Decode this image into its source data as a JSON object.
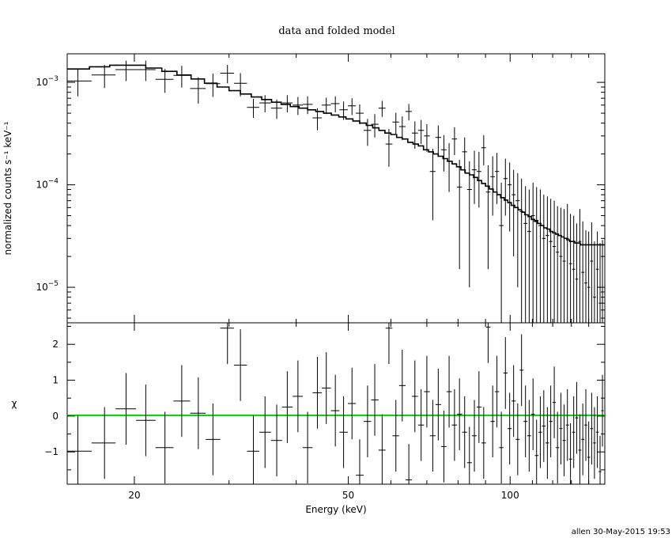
{
  "chart_data": {
    "title": "data and folded model",
    "footer": "allen 30-May-2015 19:53",
    "x_axis": {
      "label": "Energy (keV)",
      "scale": "log",
      "range": [
        15.0,
        150.0
      ],
      "ticks": [
        {
          "value": 20,
          "label": "20"
        },
        {
          "value": 50,
          "label": "50"
        },
        {
          "value": 100,
          "label": "100"
        }
      ]
    },
    "panels": [
      {
        "name": "spectrum",
        "type": "scatter",
        "ylabel": "normalized counts s⁻¹ keV⁻¹",
        "y_scale": "log",
        "y_range": [
          4.5e-06,
          0.0019
        ],
        "y_ticks": [
          {
            "value": 0.001,
            "base": "10",
            "exp": "−3"
          },
          {
            "value": 0.0001,
            "base": "10",
            "exp": "−4"
          },
          {
            "value": 1e-05,
            "base": "10",
            "exp": "−5"
          }
        ],
        "data": {
          "x": [
            15.7,
            17.6,
            19.3,
            21.0,
            22.8,
            24.5,
            26.3,
            28.0,
            29.8,
            31.5,
            33.3,
            35.0,
            36.8,
            38.5,
            40.3,
            42.0,
            43.8,
            45.5,
            47.3,
            49.0,
            50.8,
            52.5,
            54.3,
            56.0,
            57.8,
            59.5,
            61.3,
            63.0,
            64.8,
            66.5,
            68.3,
            70.0,
            71.8,
            73.5,
            75.3,
            77.0,
            78.8,
            80.5,
            82.3,
            84.0,
            85.8,
            87.5,
            89.3,
            91.0,
            92.8,
            94.5,
            96.3,
            98.0,
            99.8,
            101.5,
            103.3,
            105.0,
            106.8,
            108.5,
            110.3,
            112.0,
            113.8,
            115.5,
            117.3,
            119.0,
            120.8,
            122.5,
            124.3,
            126.0,
            127.8,
            129.5,
            131.3,
            133.0,
            134.8,
            136.5,
            138.3,
            140.0,
            141.8,
            143.5,
            145.3,
            147.0,
            148.5
          ],
          "y": [
            0.00103,
            0.00118,
            0.00133,
            0.00133,
            0.00107,
            0.00117,
            0.00087,
            0.00097,
            0.00123,
            0.00098,
            0.00057,
            0.00063,
            0.00056,
            0.00063,
            0.0006,
            0.00061,
            0.00045,
            0.0006,
            0.00062,
            0.00054,
            0.00059,
            0.0005,
            0.00034,
            0.00039,
            0.00056,
            0.00025,
            0.00041,
            0.00037,
            0.00052,
            0.00032,
            0.00034,
            0.0003,
            0.000135,
            0.00029,
            0.00022,
            0.00017,
            0.00028,
            9.5e-05,
            0.00021,
            9e-05,
            0.00014,
            0.000135,
            0.00023,
            8.5e-05,
            0.00012,
            0.000135,
            4e-05,
            0.000115,
            0.0001,
            8e-05,
            7e-05,
            5.5e-05,
            4.2e-05,
            3.5e-05,
            5e-05,
            4.5e-05,
            4e-05,
            3e-05,
            3.2e-05,
            2.8e-05,
            2.5e-05,
            2.2e-05,
            2e-05,
            1.8e-05,
            3e-05,
            1.7e-05,
            1.5e-05,
            1.2e-05,
            2.8e-05,
            1.4e-05,
            1.1e-05,
            1e-05,
            1.8e-05,
            8e-06,
            1.5e-05,
            7e-06,
            9e-06
          ],
          "yerr": [
            0.0003,
            0.0003,
            0.0003,
            0.0003,
            0.00028,
            0.00028,
            0.00025,
            0.00025,
            0.00025,
            0.00025,
            0.00012,
            0.00012,
            0.00012,
            0.00012,
            0.00012,
            0.00012,
            0.00011,
            0.00011,
            0.00011,
            0.00011,
            0.00011,
            0.00011,
            0.0001,
            0.0001,
            0.0001,
            0.0001,
            9.5e-05,
            9.5e-05,
            9.5e-05,
            9.5e-05,
            9e-05,
            9e-05,
            9e-05,
            9e-05,
            8.5e-05,
            8.5e-05,
            8.5e-05,
            8e-05,
            8e-05,
            8e-05,
            7.5e-05,
            7.5e-05,
            7.5e-05,
            7e-05,
            7e-05,
            7e-05,
            6.5e-05,
            6.5e-05,
            6.5e-05,
            6e-05,
            6e-05,
            6e-05,
            5.5e-05,
            5.5e-05,
            5.5e-05,
            5e-05,
            5e-05,
            5e-05,
            4.5e-05,
            4.5e-05,
            4.5e-05,
            4e-05,
            4e-05,
            4e-05,
            3.5e-05,
            3.5e-05,
            3.5e-05,
            3e-05,
            3e-05,
            3e-05,
            2.5e-05,
            2.5e-05,
            2.5e-05,
            2e-05,
            2e-05,
            2e-05,
            2e-05
          ]
        },
        "model": {
          "x": [
            15.0,
            16.5,
            18.0,
            19.5,
            21.0,
            22.5,
            24.0,
            25.5,
            27.0,
            28.5,
            30.0,
            31.5,
            33.0,
            34.5,
            36.0,
            37.5,
            39.0,
            40.5,
            42.0,
            43.5,
            45.0,
            46.5,
            48.0,
            49.5,
            51.0,
            52.5,
            54.0,
            55.5,
            57.0,
            58.5,
            60.0,
            61.5,
            63.0,
            64.5,
            66.0,
            67.5,
            69.0,
            70.5,
            72.0,
            73.5,
            75.0,
            76.5,
            78.0,
            79.5,
            81.0,
            82.5,
            84.0,
            85.5,
            87.0,
            88.5,
            90.0,
            91.5,
            93.0,
            94.5,
            96.0,
            97.5,
            99.0,
            100.5,
            102.0,
            103.5,
            105.0,
            106.5,
            108.0,
            109.5,
            111.0,
            112.5,
            114.0,
            115.5,
            117.0,
            118.5,
            120.0,
            121.5,
            123.0,
            124.5,
            126.0,
            127.5,
            129.0,
            130.5,
            132.0,
            133.5,
            135.0,
            136.5,
            138.0,
            139.5,
            141.0,
            142.5,
            144.0,
            145.5,
            147.0,
            148.5,
            150.0
          ],
          "y": [
            0.00135,
            0.00142,
            0.00147,
            0.00147,
            0.00138,
            0.00128,
            0.00118,
            0.00108,
            0.00098,
            0.0009,
            0.00083,
            0.00077,
            0.00072,
            0.00068,
            0.00064,
            0.00061,
            0.00058,
            0.00056,
            0.00054,
            0.00052,
            0.0005,
            0.00048,
            0.00046,
            0.00044,
            0.00042,
            0.0004,
            0.00038,
            0.00036,
            0.00034,
            0.00032,
            0.00031,
            0.00029,
            0.00028,
            0.00026,
            0.00025,
            0.00024,
            0.00022,
            0.00021,
            0.0002,
            0.00019,
            0.00018,
            0.00017,
            0.00016,
            0.00015,
            0.00014,
            0.00013,
            0.000125,
            0.000118,
            0.00011,
            0.000103,
            9.7e-05,
            9.1e-05,
            8.5e-05,
            8e-05,
            7.5e-05,
            7.1e-05,
            6.7e-05,
            6.3e-05,
            6e-05,
            5.7e-05,
            5.4e-05,
            5.1e-05,
            4.9e-05,
            4.6e-05,
            4.4e-05,
            4.2e-05,
            4e-05,
            3.8e-05,
            3.7e-05,
            3.5e-05,
            3.4e-05,
            3.3e-05,
            3.2e-05,
            3.1e-05,
            3e-05,
            2.9e-05,
            2.8e-05,
            2.8e-05,
            2.7e-05,
            2.7e-05,
            2.6e-05,
            2.6e-05,
            2.6e-05,
            2.6e-05,
            2.6e-05,
            2.6e-05,
            2.6e-05,
            2.6e-05,
            2.6e-05,
            2.6e-05,
            2.6e-05
          ]
        }
      },
      {
        "name": "residuals",
        "type": "scatter",
        "ylabel": "χ",
        "y_scale": "linear",
        "y_range": [
          -1.9,
          2.6
        ],
        "y_ticks": [
          {
            "value": 2,
            "label": "2"
          },
          {
            "value": 1,
            "label": "1"
          },
          {
            "value": 0,
            "label": "0"
          },
          {
            "value": -1,
            "label": "−1"
          }
        ],
        "zero_line_color": "#00dd00",
        "data": {
          "x": [
            15.7,
            17.6,
            19.3,
            21.0,
            22.8,
            24.5,
            26.3,
            28.0,
            29.8,
            31.5,
            33.3,
            35.0,
            36.8,
            38.5,
            40.3,
            42.0,
            43.8,
            45.5,
            47.3,
            49.0,
            50.8,
            52.5,
            54.3,
            56.0,
            57.8,
            59.5,
            61.3,
            63.0,
            64.8,
            66.5,
            68.3,
            70.0,
            71.8,
            73.5,
            75.3,
            77.0,
            78.8,
            80.5,
            82.3,
            84.0,
            85.8,
            87.5,
            89.3,
            91.0,
            92.8,
            94.5,
            96.3,
            98.0,
            99.8,
            101.5,
            103.3,
            105.0,
            106.8,
            108.5,
            110.3,
            112.0,
            113.8,
            115.5,
            117.3,
            119.0,
            120.8,
            122.5,
            124.3,
            126.0,
            127.8,
            129.5,
            131.3,
            133.0,
            134.8,
            136.5,
            138.3,
            140.0,
            141.8,
            143.5,
            145.3,
            147.0,
            148.5
          ],
          "y": [
            -0.98,
            -0.75,
            0.2,
            -0.12,
            -0.88,
            0.42,
            0.08,
            -0.65,
            2.45,
            1.42,
            -0.98,
            -0.45,
            -0.68,
            0.25,
            0.55,
            -0.88,
            0.65,
            0.78,
            0.15,
            -0.45,
            0.35,
            -1.65,
            -0.15,
            0.45,
            -0.95,
            2.45,
            -0.55,
            0.85,
            -1.78,
            0.55,
            -0.25,
            0.68,
            -0.55,
            0.32,
            -0.85,
            0.68,
            -0.25,
            0.05,
            -0.45,
            -1.3,
            -0.55,
            0.25,
            -0.75,
            2.48,
            -0.15,
            0.68,
            -0.88,
            1.2,
            -0.35,
            0.42,
            -0.65,
            1.28,
            -0.15,
            -0.55,
            0.05,
            -1.1,
            -0.45,
            -0.28,
            -0.75,
            -0.15,
            0.38,
            -0.88,
            -0.35,
            -0.68,
            -0.25,
            -1.2,
            -0.45,
            -0.05,
            -0.95,
            -0.65,
            -0.25,
            -1.15,
            -0.35,
            -0.75,
            -0.45,
            -1.55,
            0.15
          ],
          "yerr": [
            1.0,
            1.0,
            1.0,
            1.0,
            1.0,
            1.0,
            1.0,
            1.0,
            1.0,
            1.0,
            1.0,
            1.0,
            1.0,
            1.0,
            1.0,
            1.0,
            1.0,
            1.0,
            1.0,
            1.0,
            1.0,
            1.0,
            1.0,
            1.0,
            1.0,
            1.0,
            1.0,
            1.0,
            1.0,
            1.0,
            1.0,
            1.0,
            1.0,
            1.0,
            1.0,
            1.0,
            1.0,
            1.0,
            1.0,
            1.0,
            1.0,
            1.0,
            1.0,
            1.0,
            1.0,
            1.0,
            1.0,
            1.0,
            1.0,
            1.0,
            1.0,
            1.0,
            1.0,
            1.0,
            1.0,
            1.0,
            1.0,
            1.0,
            1.0,
            1.0,
            1.0,
            1.0,
            1.0,
            1.0,
            1.0,
            1.0,
            1.0,
            1.0,
            1.0,
            1.0,
            1.0,
            1.0,
            1.0,
            1.0,
            1.0,
            1.0,
            1.0
          ]
        }
      }
    ]
  }
}
